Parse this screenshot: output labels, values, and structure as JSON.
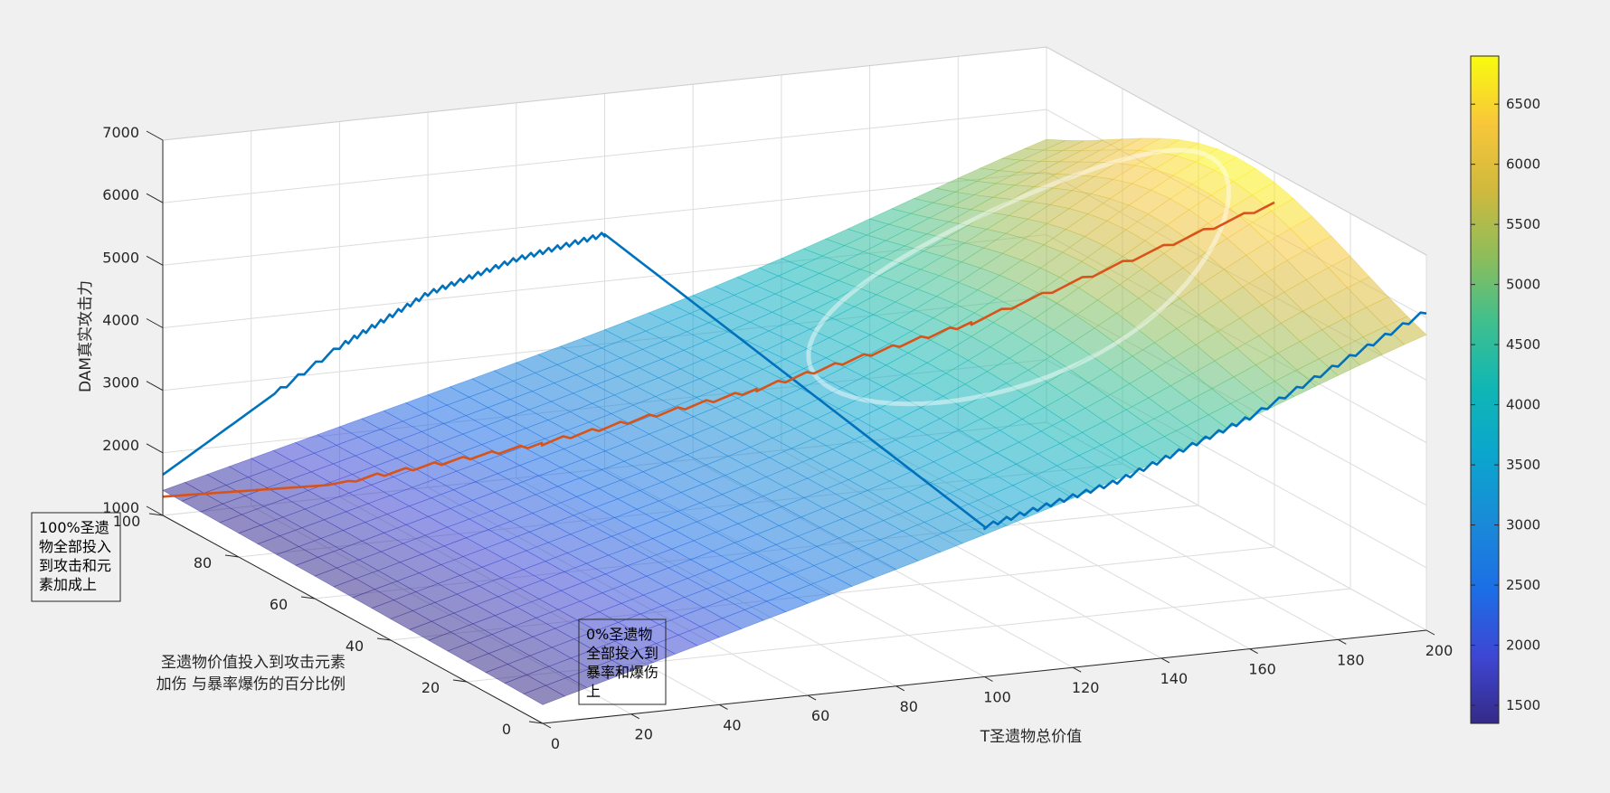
{
  "chart_data": {
    "type": "surface3d",
    "title": "",
    "xlabel": "T圣遗物总价值",
    "ylabel_lines": [
      "圣遗物价值投入到攻击元素",
      "加伤 与暴率爆伤的百分比例"
    ],
    "zlabel": "DAM真实攻击力",
    "xlim": [
      0,
      200
    ],
    "ylim": [
      0,
      100
    ],
    "zlim": [
      1000,
      7000
    ],
    "xticks": [
      "0",
      "20",
      "40",
      "60",
      "80",
      "100",
      "120",
      "140",
      "160",
      "180",
      "200"
    ],
    "yticks": [
      "0",
      "20",
      "40",
      "60",
      "80",
      "100"
    ],
    "zticks": [
      "1000",
      "2000",
      "3000",
      "4000",
      "5000",
      "6000",
      "7000"
    ],
    "grid": true,
    "colormap": "parula",
    "clim": [
      1350,
      6900
    ],
    "colorbar_ticks": [
      "1500",
      "2000",
      "2500",
      "3000",
      "3500",
      "4000",
      "4500",
      "5000",
      "5500",
      "6000",
      "6500"
    ],
    "surface_corners": {
      "x0_y0": 1300,
      "x0_y100": 1400,
      "x200_y0": 5200,
      "x200_y100": 5000,
      "max_near": {
        "x": 200,
        "y": 50,
        "z": 6900
      }
    },
    "series": [
      {
        "color": "#0072bd",
        "points": [
          {
            "x": 0,
            "y": 100,
            "z": 1650
          },
          {
            "x": 40,
            "y": 100,
            "z": 3400
          },
          {
            "x": 60,
            "y": 100,
            "z": 4100
          },
          {
            "x": 80,
            "y": 100,
            "z": 4500
          },
          {
            "x": 100,
            "y": 100,
            "z": 4750
          },
          {
            "x": 100,
            "y": 0,
            "z": 3400
          },
          {
            "x": 130,
            "y": 0,
            "z": 3900
          },
          {
            "x": 160,
            "y": 0,
            "z": 4700
          },
          {
            "x": 200,
            "y": 0,
            "z": 6100
          }
        ]
      },
      {
        "color": "#d95319",
        "points": [
          {
            "x": 0,
            "y": 100,
            "z": 1300
          },
          {
            "x": 20,
            "y": 80,
            "z": 2000
          },
          {
            "x": 60,
            "y": 70,
            "z": 2700
          },
          {
            "x": 100,
            "y": 60,
            "z": 3600
          },
          {
            "x": 140,
            "y": 50,
            "z": 4700
          },
          {
            "x": 200,
            "y": 40,
            "z": 6500
          }
        ]
      }
    ],
    "annotations": [
      {
        "text_lines": [
          "100%圣遗",
          "物全部投入",
          "到攻击和元",
          "素加成上"
        ]
      },
      {
        "text_lines": [
          "0%圣遗物",
          "全部投入到",
          "暴率和爆伤",
          "上"
        ]
      }
    ]
  }
}
